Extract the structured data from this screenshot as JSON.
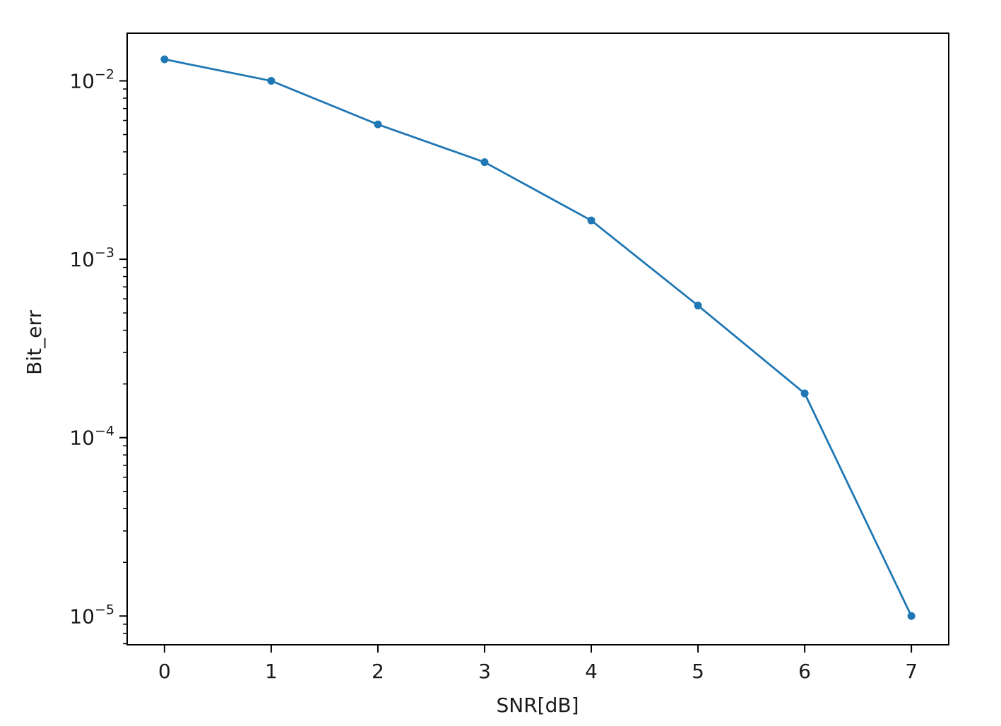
{
  "chart_data": {
    "type": "line",
    "title": "",
    "xlabel": "SNR[dB]",
    "ylabel": "Bit_err",
    "yscale": "log",
    "xlim": [
      -0.35,
      7.35
    ],
    "ylim": [
      6.9e-06,
      0.0185
    ],
    "grid": false,
    "legend": "none",
    "x_ticks": [
      0,
      1,
      2,
      3,
      4,
      5,
      6,
      7
    ],
    "x_tick_labels": [
      "0",
      "1",
      "2",
      "3",
      "4",
      "5",
      "6",
      "7"
    ],
    "y_ticks": [
      0.01,
      0.001,
      0.0001,
      1e-05
    ],
    "y_tick_labels": [
      {
        "base": "10",
        "exponent": "−2"
      },
      {
        "base": "10",
        "exponent": "−3"
      },
      {
        "base": "10",
        "exponent": "−4"
      },
      {
        "base": "10",
        "exponent": "−5"
      }
    ],
    "line_color": "#1f77b4",
    "series": [
      {
        "x": [
          0,
          1,
          2,
          3,
          4,
          5,
          6,
          7
        ],
        "values": [
          0.0132,
          0.01,
          0.0057,
          0.0035,
          0.00165,
          0.00055,
          0.000177,
          1e-05
        ]
      }
    ]
  }
}
